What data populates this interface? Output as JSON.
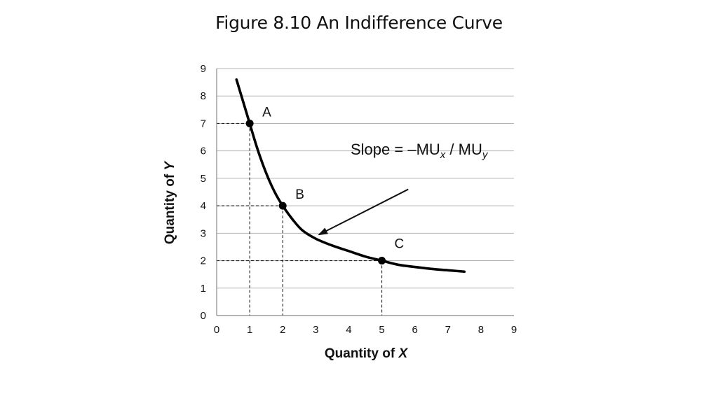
{
  "title": "Figure 8.10 An Indifference Curve",
  "chart_data": {
    "type": "line",
    "xlabel_prefix": "Quantity of ",
    "xlabel_var": "X",
    "ylabel_prefix": "Quantity of ",
    "ylabel_var": "Y",
    "xlim": [
      0,
      9
    ],
    "ylim": [
      0,
      9
    ],
    "xticks": [
      "0",
      "1",
      "2",
      "3",
      "4",
      "5",
      "6",
      "7",
      "8",
      "9"
    ],
    "yticks": [
      "0",
      "1",
      "2",
      "3",
      "4",
      "5",
      "6",
      "7",
      "8",
      "9"
    ],
    "grid": "horizontal",
    "series": [
      {
        "x": [
          0.6,
          0.8,
          1.0,
          1.2,
          1.4,
          1.6,
          1.8,
          2.0,
          2.3,
          2.6,
          3.0,
          3.5,
          4.0,
          4.5,
          5.0,
          5.5,
          6.0,
          6.5,
          7.0,
          7.5
        ],
        "y": [
          8.6,
          7.8,
          7.0,
          6.2,
          5.5,
          4.9,
          4.4,
          4.0,
          3.5,
          3.1,
          2.8,
          2.55,
          2.35,
          2.15,
          2.0,
          1.85,
          1.77,
          1.7,
          1.65,
          1.6
        ]
      }
    ],
    "points": [
      {
        "label": "A",
        "x": 1,
        "y": 7
      },
      {
        "label": "B",
        "x": 2,
        "y": 4
      },
      {
        "label": "C",
        "x": 5,
        "y": 2
      }
    ],
    "annotation": {
      "text_main": "Slope = –MU",
      "sub1": "x",
      "text_mid": " / MU",
      "sub2": "y",
      "arrow_from": [
        5.8,
        4.6
      ],
      "arrow_to": [
        3.1,
        2.95
      ]
    }
  }
}
